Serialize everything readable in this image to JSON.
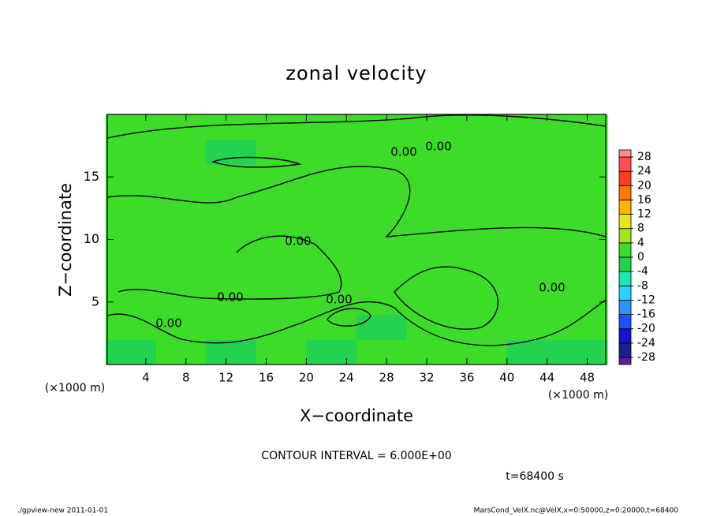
{
  "chart_data": {
    "type": "contour",
    "title": "zonal velocity",
    "x_label": "X−coordinate",
    "y_label": "Z−coordinate",
    "x_unit_left": "(×1000 m)",
    "x_unit_right": "(×1000 m)",
    "xlim": [
      0,
      50
    ],
    "ylim": [
      0,
      20
    ],
    "xticks": [
      4,
      8,
      12,
      16,
      20,
      24,
      28,
      32,
      36,
      40,
      44,
      48
    ],
    "yticks": [
      5,
      10,
      15
    ],
    "x": [
      2.5,
      7.5,
      12.5,
      17.5,
      22.5,
      27.5,
      32.5,
      37.5,
      42.5,
      47.5
    ],
    "y": [
      1,
      3,
      5,
      7,
      9,
      11,
      13,
      15,
      17,
      19
    ],
    "z": [
      [
        -1,
        1,
        -1.5,
        1,
        -1,
        1,
        0.5,
        1,
        -1,
        -1
      ],
      [
        1,
        2,
        1.5,
        1,
        2,
        -1.5,
        1,
        2,
        1.5,
        2
      ],
      [
        2,
        2.5,
        1,
        1.5,
        2,
        1,
        2,
        1,
        2.5,
        2
      ],
      [
        1,
        2,
        2.5,
        2,
        1,
        1.5,
        2.5,
        2,
        1.5,
        1
      ],
      [
        2,
        2.5,
        1.5,
        1,
        1.5,
        2,
        1,
        2,
        2.5,
        1.5
      ],
      [
        1.5,
        2,
        2.5,
        1.5,
        1,
        1.5,
        2,
        1.5,
        1,
        2
      ],
      [
        1,
        1.5,
        1,
        1,
        0.5,
        1,
        1.5,
        1,
        1,
        1.5
      ],
      [
        1,
        1,
        1.5,
        1,
        1,
        0.5,
        1,
        1,
        1.5,
        1
      ],
      [
        0.5,
        1,
        -0.5,
        1,
        1,
        0.5,
        1,
        1,
        1,
        0.5
      ],
      [
        1,
        0.5,
        1,
        1,
        0.5,
        1,
        1,
        0.5,
        1,
        1
      ]
    ],
    "colorbar": {
      "levels": [
        -28,
        -24,
        -20,
        -16,
        -12,
        -8,
        -4,
        0,
        4,
        8,
        12,
        16,
        20,
        24,
        28
      ],
      "colors": [
        "#5a1e96",
        "#1e1e8c",
        "#1414c8",
        "#1e50ff",
        "#2896ff",
        "#28d2ff",
        "#1ee6b4",
        "#22d250",
        "#3cdc28",
        "#a0e614",
        "#e6e614",
        "#ffb400",
        "#ff7800",
        "#ff3c1e",
        "#ff5050",
        "#ff8c8c"
      ]
    },
    "contour_interval": "CONTOUR INTERVAL = 6.000E+00",
    "annotations": [
      "0.00",
      "0.00",
      "0.00",
      "0.00",
      "0.00",
      "0.00",
      "0.00"
    ],
    "time_label": "t=68400 s",
    "footer_left": "./gpview-new  2011-01-01",
    "footer_right": "MarsCond_VelX.nc@VelX,x=0:50000,z=0:20000,t=68400"
  }
}
